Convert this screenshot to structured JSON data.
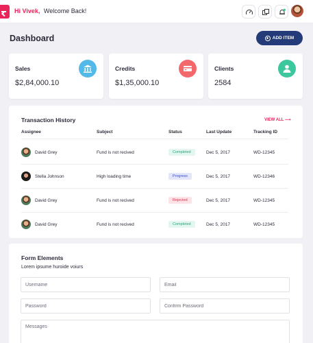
{
  "header": {
    "greeting_name": "Hi Vivek,",
    "greeting_text": "Welcome Back!",
    "icons": [
      "speedometer-icon",
      "copy-icon",
      "notification-icon",
      "user-avatar"
    ]
  },
  "page": {
    "title": "Dashboard",
    "add_button": "ADD ITEM"
  },
  "stats": [
    {
      "label": "Sales",
      "value": "$2,84,000.10",
      "icon": "bank-icon",
      "color": "#53b9e8"
    },
    {
      "label": "Credits",
      "value": "$1,35,000.10",
      "icon": "card-icon",
      "color": "#f2686b"
    },
    {
      "label": "Clients",
      "value": "2584",
      "icon": "user-icon",
      "color": "#3cc79c"
    }
  ],
  "transactions": {
    "title": "Transaction History",
    "view_all": "VIEW ALL",
    "columns": [
      "Assignee",
      "Subject",
      "Status",
      "Last Update",
      "Tracking ID"
    ],
    "rows": [
      {
        "assignee": "David Grey",
        "subject": "Fund is not recived",
        "status": "Completed",
        "last_update": "Dec 5, 2017",
        "tracking_id": "WD-12345"
      },
      {
        "assignee": "Stella Johnson",
        "subject": "High loading time",
        "status": "Progress",
        "last_update": "Dec 5, 2017",
        "tracking_id": "WD-12346"
      },
      {
        "assignee": "David Grey",
        "subject": "Fund is not recived",
        "status": "Rejected",
        "last_update": "Dec 5, 2017",
        "tracking_id": "WD-12345"
      },
      {
        "assignee": "David Grey",
        "subject": "Fund is not recived",
        "status": "Completed",
        "last_update": "Dec 5, 2017",
        "tracking_id": "WD-12345"
      }
    ]
  },
  "form": {
    "title": "Form Elements",
    "subtitle": "Lorem ipsume huroide voiurs",
    "username_placeholder": "Username",
    "email_placeholder": "Email",
    "password_placeholder": "Password",
    "confirm_password_placeholder": "Confirm Password",
    "message_placeholder": "Messages"
  },
  "colors": {
    "accent": "#e8245a",
    "primary_button": "#243b7a",
    "completed": "#2aa57e",
    "progress": "#3c4bb8",
    "rejected": "#d8324f"
  }
}
